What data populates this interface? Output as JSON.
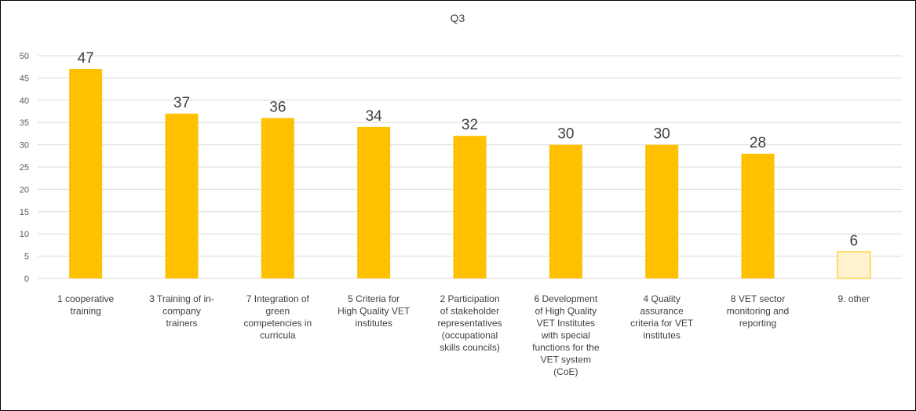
{
  "chart_data": {
    "type": "bar",
    "title": "Q3",
    "xlabel": "",
    "ylabel": "",
    "ylim": [
      0,
      50
    ],
    "yticks": [
      0,
      5,
      10,
      15,
      20,
      25,
      30,
      35,
      40,
      45,
      50
    ],
    "grid": true,
    "legend": "none",
    "categories": [
      [
        "1 cooperative",
        "training"
      ],
      [
        "3 Training of in-",
        "company",
        "trainers"
      ],
      [
        "7 Integration of",
        "green",
        "competencies in",
        "curricula"
      ],
      [
        "5 Criteria for",
        "High Quality VET",
        "institutes"
      ],
      [
        "2 Participation",
        "of stakeholder",
        "representatives",
        "(occupational",
        "skills councils)"
      ],
      [
        "6 Development",
        "of High Quality",
        "VET Institutes",
        "with special",
        "functions for the",
        "VET system",
        "(CoE)"
      ],
      [
        "4 Quality",
        "assurance",
        "criteria for VET",
        "institutes"
      ],
      [
        "8 VET sector",
        "monitoring and",
        "reporting"
      ],
      [
        "9. other"
      ]
    ],
    "values": [
      47,
      37,
      36,
      34,
      32,
      30,
      30,
      28,
      6
    ],
    "colors": {
      "bar": "#FFC000",
      "bar_highlight": "#FFF2CC",
      "bar_highlight_border": "#FFC000",
      "grid": "#D9D9D9"
    },
    "highlight_index": 8
  }
}
